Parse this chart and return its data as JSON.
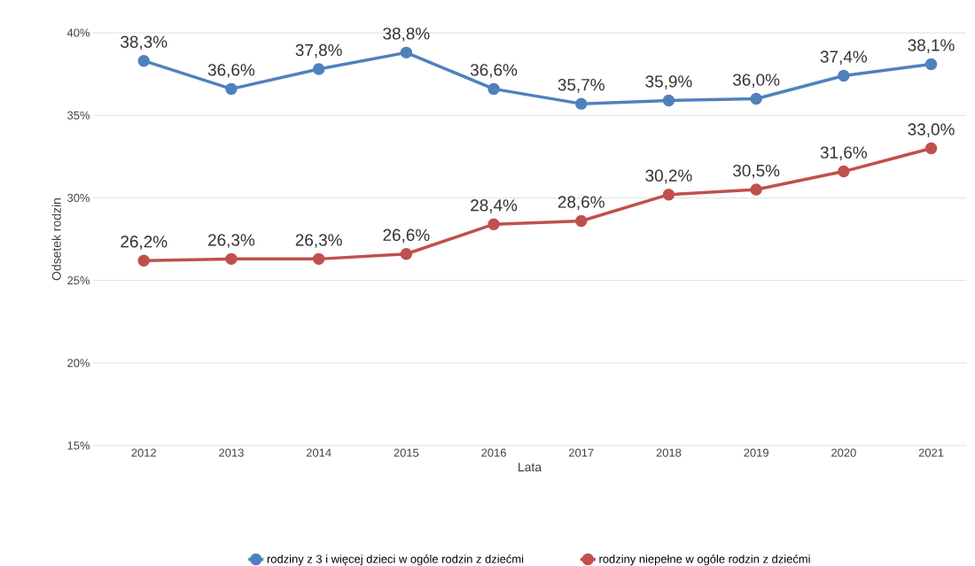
{
  "chart_data": {
    "type": "line",
    "xlabel": "Lata",
    "ylabel": "Odsetek rodzin",
    "categories": [
      "2012",
      "2013",
      "2014",
      "2015",
      "2016",
      "2017",
      "2018",
      "2019",
      "2020",
      "2021"
    ],
    "series": [
      {
        "name": "rodziny z 3 i więcej dzieci w ogóle rodzin z dziećmi",
        "color": "#4f81bd",
        "values": [
          38.3,
          36.6,
          37.8,
          38.8,
          36.6,
          35.7,
          35.9,
          36.0,
          37.4,
          38.1
        ],
        "value_labels": [
          "38,3%",
          "36,6%",
          "37,8%",
          "38,8%",
          "36,6%",
          "35,7%",
          "35,9%",
          "36,0%",
          "37,4%",
          "38,1%"
        ]
      },
      {
        "name": "rodziny niepełne w ogóle rodzin z dziećmi",
        "color": "#c0504d",
        "values": [
          26.2,
          26.3,
          26.3,
          26.6,
          28.4,
          28.6,
          30.2,
          30.5,
          31.6,
          33.0
        ],
        "value_labels": [
          "26,2%",
          "26,3%",
          "26,3%",
          "26,6%",
          "28,4%",
          "28,6%",
          "30,2%",
          "30,5%",
          "31,6%",
          "33,0%"
        ]
      }
    ],
    "ylim": [
      15,
      40
    ],
    "yticks": [
      {
        "value": 15,
        "label": "15%"
      },
      {
        "value": 20,
        "label": "20%"
      },
      {
        "value": 25,
        "label": "25%"
      },
      {
        "value": 30,
        "label": "30%"
      },
      {
        "value": 35,
        "label": "35%"
      },
      {
        "value": 40,
        "label": "40%"
      }
    ],
    "grid": "y",
    "legend": "bottom",
    "marker": "circle",
    "line_style": "solid"
  }
}
